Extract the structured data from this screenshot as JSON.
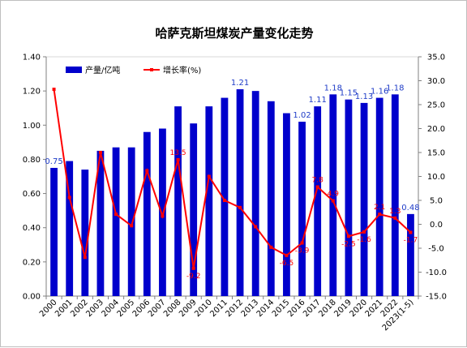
{
  "chart_data": {
    "type": "bar",
    "title": "哈萨克斯坦煤炭产量变化走势",
    "categories": [
      "2000",
      "2001",
      "2002",
      "2003",
      "2004",
      "2005",
      "2006",
      "2007",
      "2008",
      "2009",
      "2010",
      "2011",
      "2012",
      "2013",
      "2014",
      "2015",
      "2016",
      "2017",
      "2018",
      "2019",
      "2020",
      "2021",
      "2022",
      "2023(1-5)"
    ],
    "series": [
      {
        "name": "产量/亿吨",
        "kind": "bar",
        "axis": "left",
        "color": "#0000cc",
        "values": [
          0.75,
          0.79,
          0.74,
          0.85,
          0.87,
          0.87,
          0.96,
          0.98,
          1.11,
          1.01,
          1.11,
          1.16,
          1.21,
          1.2,
          1.14,
          1.07,
          1.02,
          1.11,
          1.18,
          1.15,
          1.13,
          1.16,
          1.18,
          0.48
        ],
        "data_labels": [
          "0.75",
          "",
          "",
          "",
          "",
          "",
          "",
          "",
          "",
          "",
          "",
          "",
          "1.21",
          "",
          "",
          "",
          "1.02",
          "1.11",
          "1.18",
          "1.15",
          "1.13",
          "1.16",
          "1.18",
          "0.48"
        ]
      },
      {
        "name": "增长率(%)",
        "kind": "line",
        "axis": "right",
        "color": "#ff0000",
        "values": [
          28.2,
          5.6,
          -6.9,
          15.0,
          2.1,
          -0.3,
          11.2,
          1.7,
          13.5,
          -9.2,
          10.0,
          5.0,
          3.5,
          -0.5,
          -4.8,
          -6.5,
          -3.9,
          7.8,
          4.9,
          -2.5,
          -1.6,
          2.1,
          1.3,
          -1.7
        ],
        "data_labels": [
          "",
          "",
          "",
          "",
          "",
          "",
          "",
          "",
          "13.5",
          "-9.2",
          "",
          "",
          "",
          "",
          "",
          "-6.5",
          "-3.9",
          "7.8",
          "4.9",
          "-2.5",
          "-1.6",
          "2.1",
          "1.3",
          "-1.7"
        ]
      }
    ],
    "y_left": {
      "min": 0,
      "max": 1.4,
      "step": 0.2,
      "tick_labels": [
        "0.00",
        "0.20",
        "0.40",
        "0.60",
        "0.80",
        "1.00",
        "1.20",
        "1.40"
      ]
    },
    "y_right": {
      "min": -15,
      "max": 35,
      "step": 5,
      "tick_labels": [
        "-15.0",
        "-10.0",
        "-5.0",
        "0.0",
        "5.0",
        "10.0",
        "15.0",
        "20.0",
        "25.0",
        "30.0",
        "35.0"
      ]
    },
    "grid": false,
    "legend_position": "top-left"
  }
}
